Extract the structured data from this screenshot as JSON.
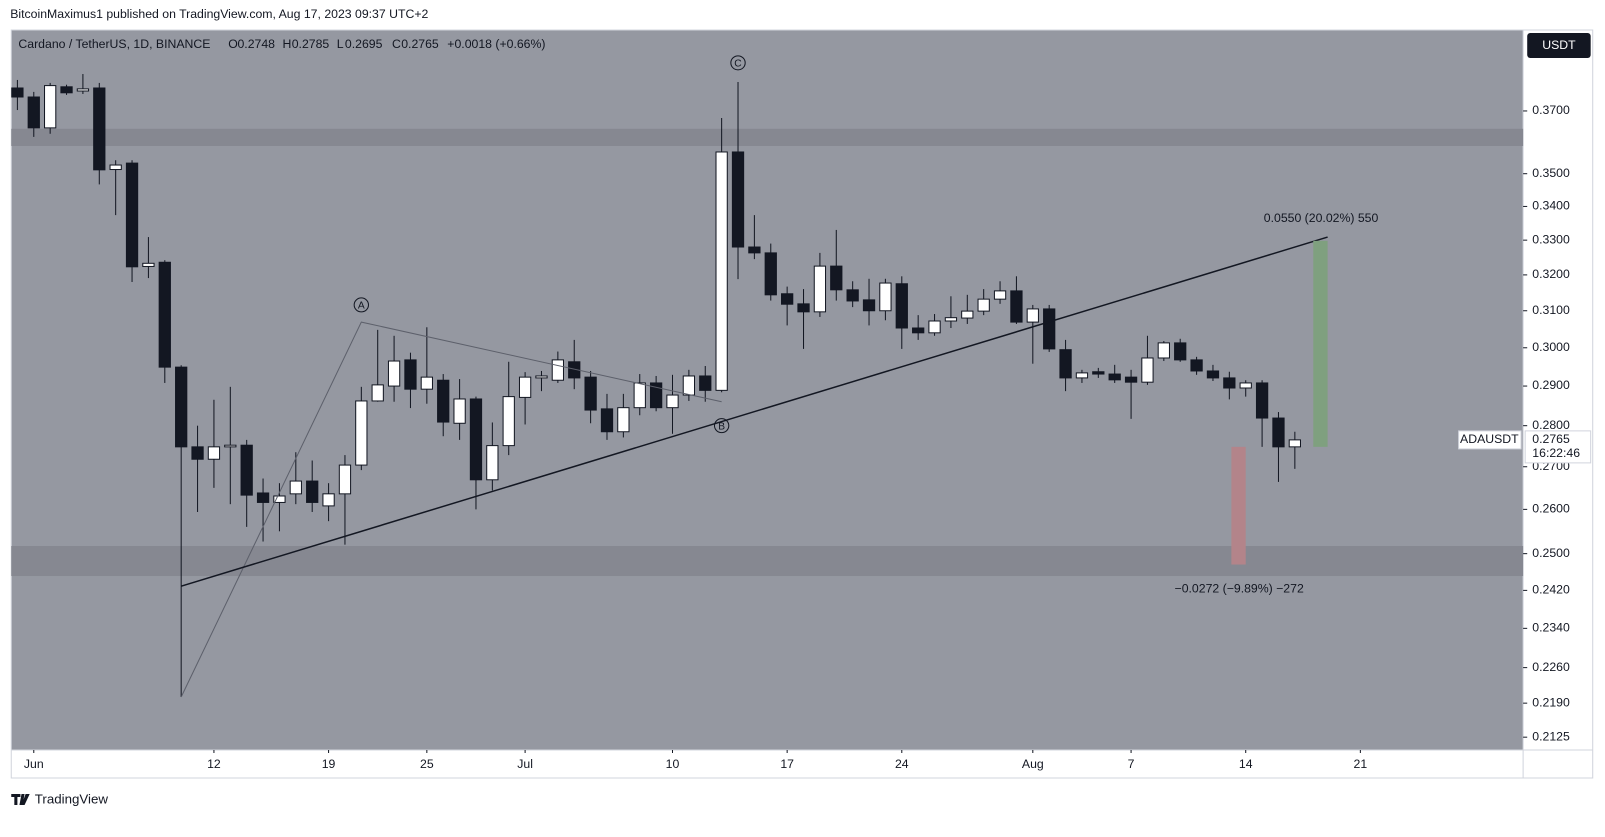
{
  "chart_data": {
    "type": "candlestick",
    "published": "BitcoinMaximus1 published on TradingView.com, Aug 17, 2023 09:37 UTC+2",
    "symbol_title": "Cardano / TetherUS, 1D, BINANCE",
    "ohlc_header": {
      "O_label": "O",
      "O": 0.2748,
      "H_label": "H",
      "H": 0.2785,
      "L_label": "L",
      "L": 0.2695,
      "C_label": "C",
      "C": 0.2765,
      "change": "+0.0018 (+0.66%)"
    },
    "currency": "USDT",
    "footer": "TradingView",
    "log_scale": true,
    "grid": false,
    "up_color": "#ffffff",
    "down_color": "#131722",
    "background": "#9598a1",
    "zone_color": "#868891",
    "x": [
      "2023-05-31",
      "2023-06-01",
      "2023-06-02",
      "2023-06-03",
      "2023-06-04",
      "2023-06-05",
      "2023-06-06",
      "2023-06-07",
      "2023-06-08",
      "2023-06-09",
      "2023-06-10",
      "2023-06-11",
      "2023-06-12",
      "2023-06-13",
      "2023-06-14",
      "2023-06-15",
      "2023-06-16",
      "2023-06-17",
      "2023-06-18",
      "2023-06-19",
      "2023-06-20",
      "2023-06-21",
      "2023-06-22",
      "2023-06-23",
      "2023-06-24",
      "2023-06-25",
      "2023-06-26",
      "2023-06-27",
      "2023-06-28",
      "2023-06-29",
      "2023-06-30",
      "2023-07-01",
      "2023-07-02",
      "2023-07-03",
      "2023-07-04",
      "2023-07-05",
      "2023-07-06",
      "2023-07-07",
      "2023-07-08",
      "2023-07-09",
      "2023-07-10",
      "2023-07-11",
      "2023-07-12",
      "2023-07-13",
      "2023-07-14",
      "2023-07-15",
      "2023-07-16",
      "2023-07-17",
      "2023-07-18",
      "2023-07-19",
      "2023-07-20",
      "2023-07-21",
      "2023-07-22",
      "2023-07-23",
      "2023-07-24",
      "2023-07-25",
      "2023-07-26",
      "2023-07-27",
      "2023-07-28",
      "2023-07-29",
      "2023-07-30",
      "2023-07-31",
      "2023-08-01",
      "2023-08-02",
      "2023-08-03",
      "2023-08-04",
      "2023-08-05",
      "2023-08-06",
      "2023-08-07",
      "2023-08-08",
      "2023-08-09",
      "2023-08-10",
      "2023-08-11",
      "2023-08-12",
      "2023-08-13",
      "2023-08-14",
      "2023-08-15",
      "2023-08-16",
      "2023-08-17"
    ],
    "open": [
      0.3776,
      0.3746,
      0.3645,
      0.378,
      0.3766,
      0.3776,
      0.3513,
      0.3533,
      0.3224,
      0.3236,
      0.2949,
      0.2748,
      0.2718,
      0.2748,
      0.2752,
      0.2638,
      0.2616,
      0.2636,
      0.2666,
      0.2608,
      0.2636,
      0.2704,
      0.2862,
      0.29,
      0.2968,
      0.2892,
      0.2915,
      0.2806,
      0.2867,
      0.2669,
      0.2751,
      0.2871,
      0.2921,
      0.2915,
      0.2963,
      0.2923,
      0.2842,
      0.2785,
      0.2845,
      0.2908,
      0.2845,
      0.2877,
      0.2926,
      0.2889,
      0.3568,
      0.328,
      0.3263,
      0.3147,
      0.3119,
      0.3097,
      0.3225,
      0.3158,
      0.313,
      0.31,
      0.3175,
      0.3053,
      0.304,
      0.3072,
      0.308,
      0.3099,
      0.3132,
      0.3155,
      0.3069,
      0.3105,
      0.2995,
      0.2921,
      0.2937,
      0.2931,
      0.2923,
      0.291,
      0.2973,
      0.3013,
      0.2968,
      0.2939,
      0.2921,
      0.2895,
      0.2908,
      0.2819,
      0.2748
    ],
    "high": [
      0.3803,
      0.3763,
      0.3793,
      0.3787,
      0.3823,
      0.3793,
      0.3542,
      0.3542,
      0.3309,
      0.3242,
      0.2954,
      0.28,
      0.2865,
      0.2898,
      0.2765,
      0.2672,
      0.2661,
      0.2735,
      0.2715,
      0.2661,
      0.2728,
      0.2898,
      0.3048,
      0.3032,
      0.2987,
      0.3055,
      0.2931,
      0.2918,
      0.2873,
      0.2808,
      0.2963,
      0.2936,
      0.2939,
      0.299,
      0.3021,
      0.2939,
      0.288,
      0.288,
      0.2931,
      0.2926,
      0.2929,
      0.2942,
      0.2952,
      0.3677,
      0.3796,
      0.3374,
      0.329,
      0.3167,
      0.316,
      0.3263,
      0.333,
      0.3182,
      0.3189,
      0.3189,
      0.3196,
      0.3088,
      0.3091,
      0.314,
      0.3144,
      0.316,
      0.3182,
      0.3196,
      0.3116,
      0.3116,
      0.3021,
      0.2942,
      0.2947,
      0.2955,
      0.2942,
      0.3032,
      0.3018,
      0.3024,
      0.2976,
      0.2955,
      0.2937,
      0.2915,
      0.2915,
      0.2834,
      0.2785
    ],
    "low": [
      0.3703,
      0.3616,
      0.3626,
      0.3753,
      0.3756,
      0.3467,
      0.3374,
      0.318,
      0.3191,
      0.2908,
      0.2202,
      0.2594,
      0.265,
      0.2612,
      0.256,
      0.2527,
      0.255,
      0.2612,
      0.2594,
      0.2573,
      0.252,
      0.2692,
      0.286,
      0.286,
      0.2844,
      0.2855,
      0.2774,
      0.2765,
      0.26,
      0.2644,
      0.2728,
      0.2803,
      0.2887,
      0.2908,
      0.2892,
      0.2806,
      0.2765,
      0.2771,
      0.2826,
      0.2836,
      0.278,
      0.2862,
      0.286,
      0.2884,
      0.3188,
      0.3245,
      0.3128,
      0.306,
      0.2997,
      0.3083,
      0.3128,
      0.311,
      0.306,
      0.3074,
      0.2997,
      0.3021,
      0.3032,
      0.3053,
      0.3064,
      0.3088,
      0.3119,
      0.3064,
      0.2958,
      0.2989,
      0.2887,
      0.2908,
      0.2921,
      0.2908,
      0.2817,
      0.2903,
      0.2965,
      0.2963,
      0.2929,
      0.2913,
      0.2866,
      0.2873,
      0.2748,
      0.2664,
      0.2695
    ],
    "close": [
      0.3746,
      0.3645,
      0.3784,
      0.376,
      0.3773,
      0.3512,
      0.3527,
      0.3223,
      0.3233,
      0.2949,
      0.2748,
      0.2718,
      0.2748,
      0.2752,
      0.2633,
      0.2616,
      0.2631,
      0.2666,
      0.2616,
      0.2636,
      0.2704,
      0.2862,
      0.2903,
      0.2965,
      0.2892,
      0.2923,
      0.2809,
      0.2867,
      0.2669,
      0.2751,
      0.2873,
      0.2923,
      0.2926,
      0.2968,
      0.2921,
      0.2839,
      0.2785,
      0.2845,
      0.2908,
      0.2845,
      0.2877,
      0.2926,
      0.2889,
      0.3568,
      0.328,
      0.3263,
      0.3144,
      0.3118,
      0.3097,
      0.3225,
      0.3158,
      0.3127,
      0.31,
      0.3177,
      0.3053,
      0.304,
      0.3072,
      0.3081,
      0.3099,
      0.3132,
      0.3155,
      0.3069,
      0.3105,
      0.2997,
      0.2921,
      0.2934,
      0.2931,
      0.2916,
      0.291,
      0.2973,
      0.3013,
      0.2968,
      0.2939,
      0.2921,
      0.2895,
      0.2908,
      0.2819,
      0.2748,
      0.2765
    ],
    "xlim": [
      "2023-05-30T15:00:00Z",
      "2023-08-30T22:30:00Z"
    ],
    "xticks": [
      {
        "value": "2023-06-01",
        "label": "Jun"
      },
      {
        "value": "2023-06-12",
        "label": "12"
      },
      {
        "value": "2023-06-19",
        "label": "19"
      },
      {
        "value": "2023-06-25",
        "label": "25"
      },
      {
        "value": "2023-07-01",
        "label": "Jul"
      },
      {
        "value": "2023-07-10",
        "label": "10"
      },
      {
        "value": "2023-07-17",
        "label": "17"
      },
      {
        "value": "2023-07-24",
        "label": "24"
      },
      {
        "value": "2023-08-01",
        "label": "Aug"
      },
      {
        "value": "2023-08-07",
        "label": "7"
      },
      {
        "value": "2023-08-14",
        "label": "14"
      },
      {
        "value": "2023-08-21",
        "label": "21"
      }
    ],
    "ylim": [
      0.2101,
      0.3975
    ],
    "yticks": [
      {
        "value": 0.37,
        "label": "0.3700"
      },
      {
        "value": 0.35,
        "label": "0.3500"
      },
      {
        "value": 0.34,
        "label": "0.3400"
      },
      {
        "value": 0.33,
        "label": "0.3300"
      },
      {
        "value": 0.32,
        "label": "0.3200"
      },
      {
        "value": 0.31,
        "label": "0.3100"
      },
      {
        "value": 0.3,
        "label": "0.3000"
      },
      {
        "value": 0.29,
        "label": "0.2900"
      },
      {
        "value": 0.28,
        "label": "0.2800"
      },
      {
        "value": 0.27,
        "label": "0.2700"
      },
      {
        "value": 0.26,
        "label": "0.2600"
      },
      {
        "value": 0.25,
        "label": "0.2500"
      },
      {
        "value": 0.242,
        "label": "0.2420"
      },
      {
        "value": 0.234,
        "label": "0.2340"
      },
      {
        "value": 0.226,
        "label": "0.2260"
      },
      {
        "value": 0.219,
        "label": "0.2190"
      },
      {
        "value": 0.2125,
        "label": "0.2125"
      }
    ],
    "zones": [
      {
        "from": 0.3587,
        "to": 0.3642
      },
      {
        "from": 0.2451,
        "to": 0.2517
      }
    ],
    "trendline": {
      "x": [
        "2023-06-10",
        "2023-08-19"
      ],
      "values": [
        0.2429,
        0.3309
      ],
      "color": "#131722"
    },
    "wave_line": {
      "x": [
        "2023-06-10",
        "2023-06-21",
        "2023-07-13"
      ],
      "values": [
        0.2202,
        0.3069,
        0.286
      ],
      "color": "#5d606b"
    },
    "wave_labels": [
      {
        "label": "A",
        "x": "2023-06-21",
        "value": 0.3116
      },
      {
        "label": "B",
        "x": "2023-07-13",
        "value": 0.28
      },
      {
        "label": "C",
        "x": "2023-07-14",
        "value": 0.3861
      }
    ],
    "measures": [
      {
        "x": "2023-08-19",
        "from": 0.2748,
        "to": 0.3298,
        "color": "#7fa07f",
        "label": "0.0550 (20.02%) 550"
      },
      {
        "x": "2023-08-14",
        "from": 0.2748,
        "to": 0.2476,
        "color": "#b3848a",
        "label": "−0.0272 (−9.89%) −272"
      }
    ],
    "last_price": {
      "symbol": "ADAUSDT",
      "price": 0.2765,
      "countdown": "16:22:46"
    }
  }
}
